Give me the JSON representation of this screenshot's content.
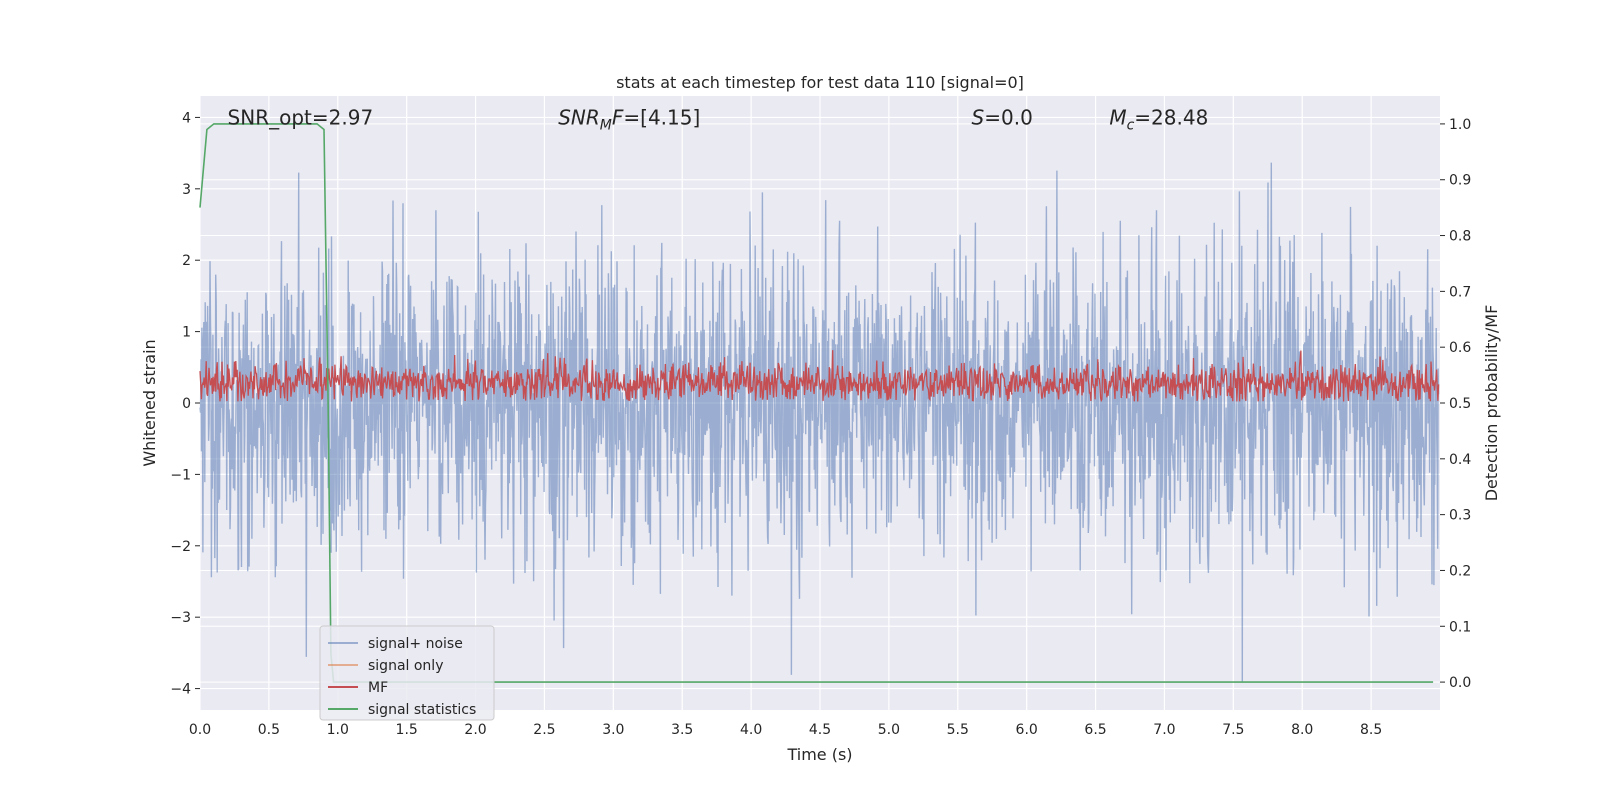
{
  "chart_data": {
    "type": "line",
    "title": "stats at each timestep for test data 110 [signal=0]",
    "xlabel": "Time (s)",
    "ylabel": "Whitened strain",
    "ylabel_right": "Detection probability/MF",
    "xlim": [
      0,
      9
    ],
    "ylim": [
      -4.3,
      4.3
    ],
    "ylim_right": [
      -0.05,
      1.05
    ],
    "x_ticks": [
      0.0,
      0.5,
      1.0,
      1.5,
      2.0,
      2.5,
      3.0,
      3.5,
      4.0,
      4.5,
      5.0,
      5.5,
      6.0,
      6.5,
      7.0,
      7.5,
      8.0,
      8.5
    ],
    "x_tick_labels": [
      "0.0",
      "0.5",
      "1.0",
      "1.5",
      "2.0",
      "2.5",
      "3.0",
      "3.5",
      "4.0",
      "4.5",
      "5.0",
      "5.5",
      "6.0",
      "6.5",
      "7.0",
      "7.5",
      "8.0",
      "8.5"
    ],
    "y_ticks": [
      -4,
      -3,
      -2,
      -1,
      0,
      1,
      2,
      3,
      4
    ],
    "y_tick_labels": [
      "−4",
      "−3",
      "−2",
      "−1",
      "0",
      "1",
      "2",
      "3",
      "4"
    ],
    "y_ticks_right": [
      0.0,
      0.1,
      0.2,
      0.3,
      0.4,
      0.5,
      0.6,
      0.7,
      0.8,
      0.9,
      1.0
    ],
    "y_tick_labels_right": [
      "0.0",
      "0.1",
      "0.2",
      "0.3",
      "0.4",
      "0.5",
      "0.6",
      "0.7",
      "0.8",
      "0.9",
      "1.0"
    ],
    "grid": true,
    "legend_position": "lower-left",
    "annotations": [
      {
        "id": "snr-opt",
        "text": "SNR_opt=2.97",
        "x": 0.2,
        "y": 4.0
      },
      {
        "id": "snr-mf",
        "text": "SNR_MF=[4.15]",
        "x": 2.6,
        "y": 4.0
      },
      {
        "id": "s-value",
        "text": "S=0.0",
        "x": 5.6,
        "y": 4.0
      },
      {
        "id": "mc-value",
        "text": "M_c=28.48",
        "x": 6.6,
        "y": 4.0
      }
    ],
    "series": [
      {
        "name": "signal+ noise",
        "color": "#4c72b0",
        "opacity": 0.5,
        "axis": "left",
        "description_range": [
          -4,
          4
        ]
      },
      {
        "name": "signal only",
        "color": "#dd8452",
        "opacity": 0.6,
        "axis": "left"
      },
      {
        "name": "MF",
        "color": "#c44e52",
        "axis": "left",
        "description_range": [
          0,
          1
        ]
      },
      {
        "name": "signal statistics",
        "color": "#55a868",
        "axis": "right",
        "x": [
          0.0,
          0.05,
          0.1,
          0.2,
          0.3,
          0.4,
          0.5,
          0.6,
          0.7,
          0.8,
          0.85,
          0.9,
          0.93,
          0.95,
          0.97,
          1.0,
          1.5,
          2.0,
          3.0,
          4.0,
          5.0,
          6.0,
          7.0,
          8.0,
          8.95
        ],
        "values": [
          0.85,
          0.99,
          1.0,
          1.0,
          1.0,
          1.0,
          1.0,
          1.0,
          1.0,
          1.0,
          1.0,
          0.99,
          0.5,
          0.05,
          0.0,
          0.0,
          0.0,
          0.0,
          0.0,
          0.0,
          0.0,
          0.0,
          0.0,
          0.0,
          0.0
        ]
      }
    ]
  }
}
